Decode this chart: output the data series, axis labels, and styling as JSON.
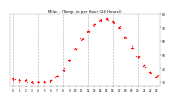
{
  "title": "Milw. - (Temp. in per Hour (24 Hours))",
  "hours": [
    0,
    1,
    2,
    3,
    4,
    5,
    6,
    7,
    8,
    9,
    10,
    11,
    12,
    13,
    14,
    15,
    16,
    17,
    18,
    19,
    20,
    21,
    22,
    23
  ],
  "temps": [
    32,
    31,
    31,
    30,
    30,
    30,
    31,
    34,
    39,
    46,
    54,
    61,
    67,
    72,
    75,
    76,
    74,
    70,
    63,
    55,
    48,
    42,
    37,
    34
  ],
  "bg_color": "#ffffff",
  "plot_bg": "#ffffff",
  "dot_color": "#ff0000",
  "grid_color": "#aaaaaa",
  "text_color": "#000000",
  "title_color": "#000000",
  "ylim": [
    27,
    80
  ],
  "xlim": [
    -0.5,
    23.5
  ],
  "yticks": [
    30,
    40,
    50,
    60,
    70,
    80
  ],
  "xticks": [
    0,
    1,
    2,
    3,
    4,
    5,
    6,
    7,
    8,
    9,
    10,
    11,
    12,
    13,
    14,
    15,
    16,
    17,
    18,
    19,
    20,
    21,
    22,
    23
  ],
  "xtick_labels": [
    "0",
    "1",
    "2",
    "3",
    "4",
    "5",
    "6",
    "7",
    "8",
    "9",
    "10",
    "11",
    "12",
    "13",
    "14",
    "15",
    "16",
    "17",
    "18",
    "19",
    "20",
    "21",
    "22",
    "23"
  ],
  "ytick_labels": [
    "30",
    "40",
    "50",
    "60",
    "70",
    "80"
  ],
  "grid_xticks": [
    0,
    4,
    8,
    12,
    16,
    20
  ]
}
